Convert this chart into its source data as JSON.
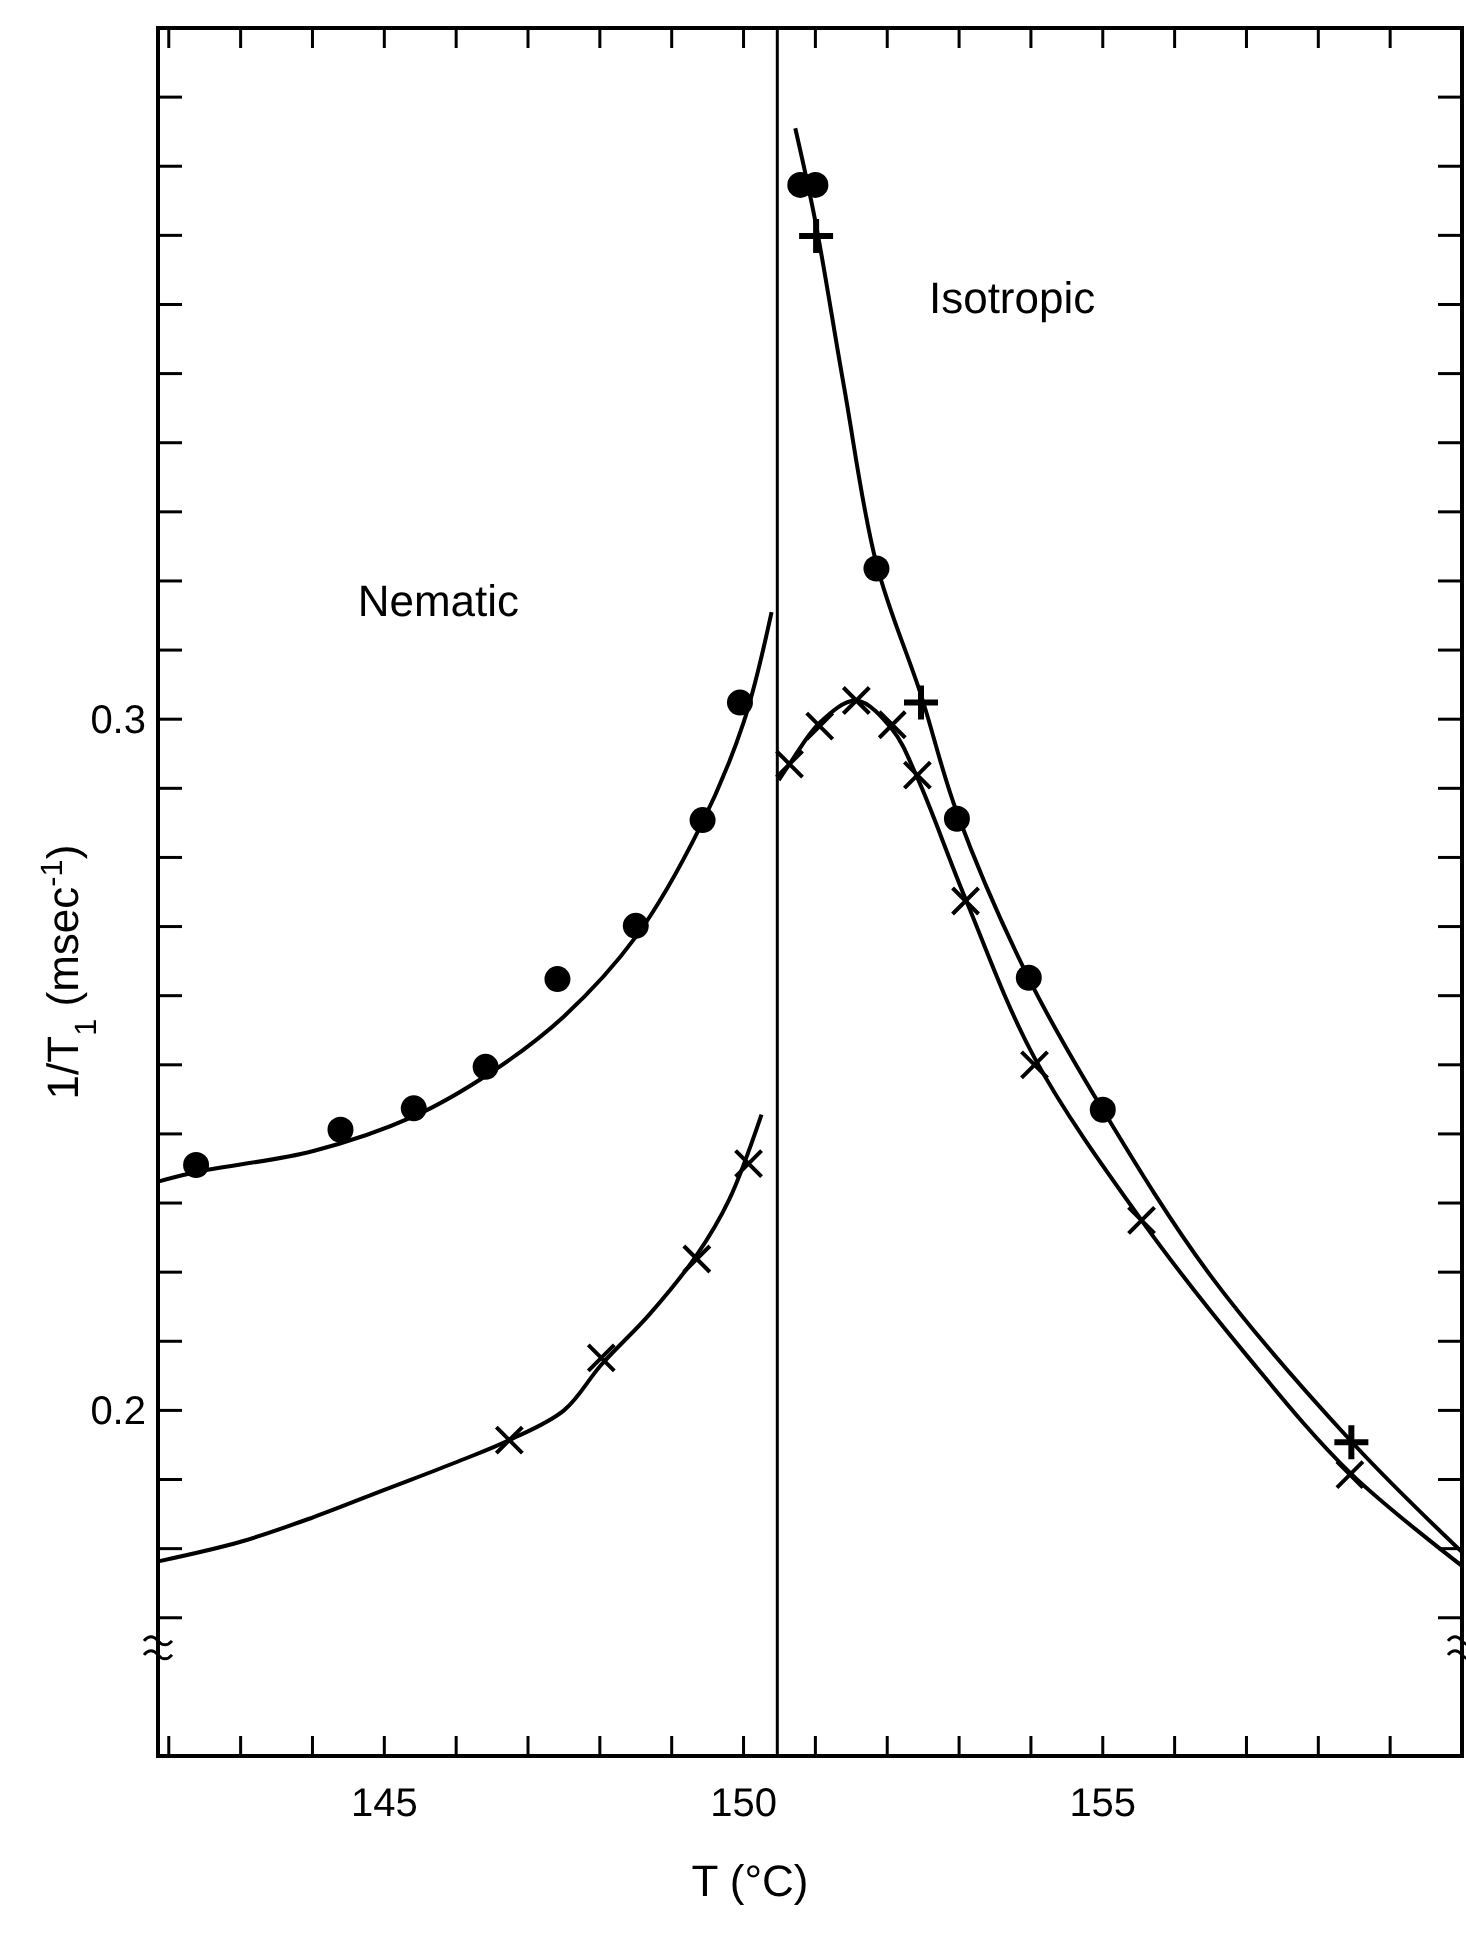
{
  "chart_data": {
    "type": "scatter",
    "xlabel": "T (°C)",
    "ylabel": "1/T$_{1}$ (msec$^{-1}$)",
    "xlim": [
      141.85,
      160
    ],
    "ylim": [
      0.15,
      0.4
    ],
    "xticks": [
      {
        "value": 142,
        "label": null
      },
      {
        "value": 143,
        "label": null
      },
      {
        "value": 144,
        "label": null
      },
      145,
      {
        "value": 146,
        "label": null
      },
      {
        "value": 147,
        "label": null
      },
      {
        "value": 148,
        "label": null
      },
      {
        "value": 149,
        "label": null
      },
      150,
      {
        "value": 151,
        "label": null
      },
      {
        "value": 152,
        "label": null
      },
      {
        "value": 153,
        "label": null
      },
      {
        "value": 154,
        "label": null
      },
      155,
      {
        "value": 156,
        "label": null
      },
      {
        "value": 157,
        "label": null
      },
      {
        "value": 158,
        "label": null
      },
      {
        "value": 159,
        "label": null
      }
    ],
    "yticks": [
      {
        "value": 0.17,
        "label": null
      },
      {
        "value": 0.18,
        "label": null
      },
      {
        "value": 0.19,
        "label": null
      },
      {
        "value": 0.2,
        "label": "0.2"
      },
      {
        "value": 0.21,
        "label": null
      },
      {
        "value": 0.22,
        "label": null
      },
      {
        "value": 0.23,
        "label": null
      },
      {
        "value": 0.24,
        "label": null
      },
      {
        "value": 0.25,
        "label": null
      },
      {
        "value": 0.26,
        "label": null
      },
      {
        "value": 0.27,
        "label": null
      },
      {
        "value": 0.28,
        "label": null
      },
      {
        "value": 0.29,
        "label": null
      },
      {
        "value": 0.3,
        "label": "0.3"
      },
      {
        "value": 0.31,
        "label": null
      },
      {
        "value": 0.32,
        "label": null
      },
      {
        "value": 0.33,
        "label": null
      },
      {
        "value": 0.34,
        "label": null
      },
      {
        "value": 0.35,
        "label": null
      },
      {
        "value": 0.36,
        "label": null
      },
      {
        "value": 0.37,
        "label": null
      },
      {
        "value": 0.38,
        "label": null
      },
      {
        "value": 0.39,
        "label": null
      }
    ],
    "grid": false,
    "ref_lines": [
      {
        "axis": "x",
        "value": 150.47,
        "color": "#000000",
        "line_style": "solid"
      }
    ],
    "annotations": [
      "Nematic",
      "Isotropic"
    ],
    "series": [
      {
        "marker": "circle",
        "color": "#000000",
        "x": [
          142.38,
          144.39,
          145.41,
          146.41,
          147.41,
          148.5,
          149.43,
          149.95,
          150.79,
          151.0,
          151.85,
          152.97,
          153.97,
          155.0
        ],
        "values": [
          0.2355,
          0.2406,
          0.2437,
          0.2497,
          0.2624,
          0.2701,
          0.2854,
          0.3024,
          0.3773,
          0.3773,
          0.3218,
          0.2856,
          0.2626,
          0.2435
        ]
      },
      {
        "marker": "x",
        "color": "#000000",
        "x": [
          146.74,
          148.02,
          149.35,
          150.07,
          150.64,
          151.06,
          151.57,
          152.07,
          152.42,
          153.09,
          154.05,
          155.54,
          158.44
        ],
        "values": [
          0.1957,
          0.2076,
          0.2219,
          0.2357,
          0.2935,
          0.299,
          0.3027,
          0.2992,
          0.2919,
          0.2737,
          0.25,
          0.2275,
          0.1907
        ]
      },
      {
        "marker": "cross",
        "color": "#000000",
        "x": [
          151.01,
          152.47,
          158.46
        ],
        "values": [
          0.3699,
          0.3024,
          0.1954
        ]
      },
      {
        "type": "line",
        "marker": "none",
        "line_style": "solid",
        "color": "#000000",
        "x": [
          141.85,
          142.38,
          144,
          145.4,
          146.5,
          147.5,
          148.5,
          149.4,
          150,
          150.39
        ],
        "values": [
          0.2331,
          0.2345,
          0.2375,
          0.2425,
          0.249,
          0.257,
          0.2685,
          0.2845,
          0.2995,
          0.3155
        ]
      },
      {
        "type": "line",
        "marker": "none",
        "line_style": "solid",
        "color": "#000000",
        "x": [
          141.87,
          143,
          144,
          145,
          146,
          146.74,
          147.5,
          148.02,
          148.7,
          149.35,
          149.8,
          150.25
        ],
        "values": [
          0.1782,
          0.181,
          0.1845,
          0.1885,
          0.1925,
          0.1957,
          0.2,
          0.2066,
          0.214,
          0.2225,
          0.2305,
          0.2428
        ]
      },
      {
        "type": "line",
        "marker": "none",
        "line_style": "solid",
        "color": "#000000",
        "x": [
          150.72,
          151,
          151.4,
          151.85,
          152.47,
          152.97,
          153.97,
          155,
          156.5,
          158.46,
          160
        ],
        "values": [
          0.3855,
          0.372,
          0.348,
          0.3225,
          0.3035,
          0.2865,
          0.2625,
          0.2435,
          0.2195,
          0.1955,
          0.1795
        ]
      },
      {
        "type": "line",
        "marker": "none",
        "line_style": "solid",
        "color": "#000000",
        "x": [
          150.49,
          150.64,
          151.06,
          151.57,
          152.07,
          152.42,
          153.09,
          154.05,
          155.54,
          157,
          158.44,
          160
        ],
        "values": [
          0.2912,
          0.2935,
          0.2995,
          0.3027,
          0.2985,
          0.2915,
          0.274,
          0.251,
          0.2275,
          0.208,
          0.191,
          0.1775
        ]
      }
    ]
  }
}
